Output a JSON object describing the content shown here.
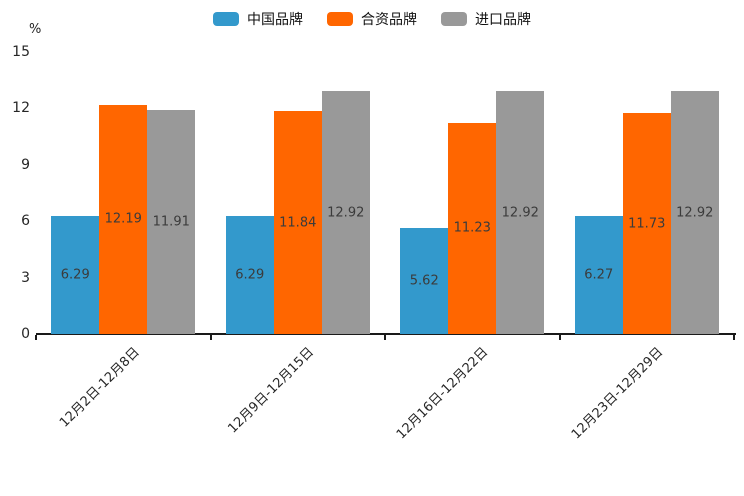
{
  "chart_data": {
    "type": "bar",
    "title": "",
    "ylabel": "%",
    "categories": [
      "12月2日-12月8日",
      "12月9日-12月15日",
      "12月16日-12月22日",
      "12月23日-12月29日"
    ],
    "series": [
      {
        "name": "中国品牌",
        "color": "#3399CC",
        "values": [
          6.29,
          6.29,
          5.62,
          6.27
        ]
      },
      {
        "name": "合资品牌",
        "color": "#FF6600",
        "values": [
          12.19,
          11.84,
          11.23,
          11.73
        ]
      },
      {
        "name": "进口品牌",
        "color": "#999999",
        "values": [
          11.91,
          12.92,
          12.92,
          12.92
        ]
      }
    ],
    "yticks": [
      0,
      3,
      6,
      9,
      12,
      15
    ],
    "ylim": [
      0,
      15
    ],
    "grid": false,
    "legend_position": "top",
    "value_labels": "centered-inside-bars",
    "axis_color": "#1a1a1a",
    "value_label_color": "#3b3b3b"
  }
}
